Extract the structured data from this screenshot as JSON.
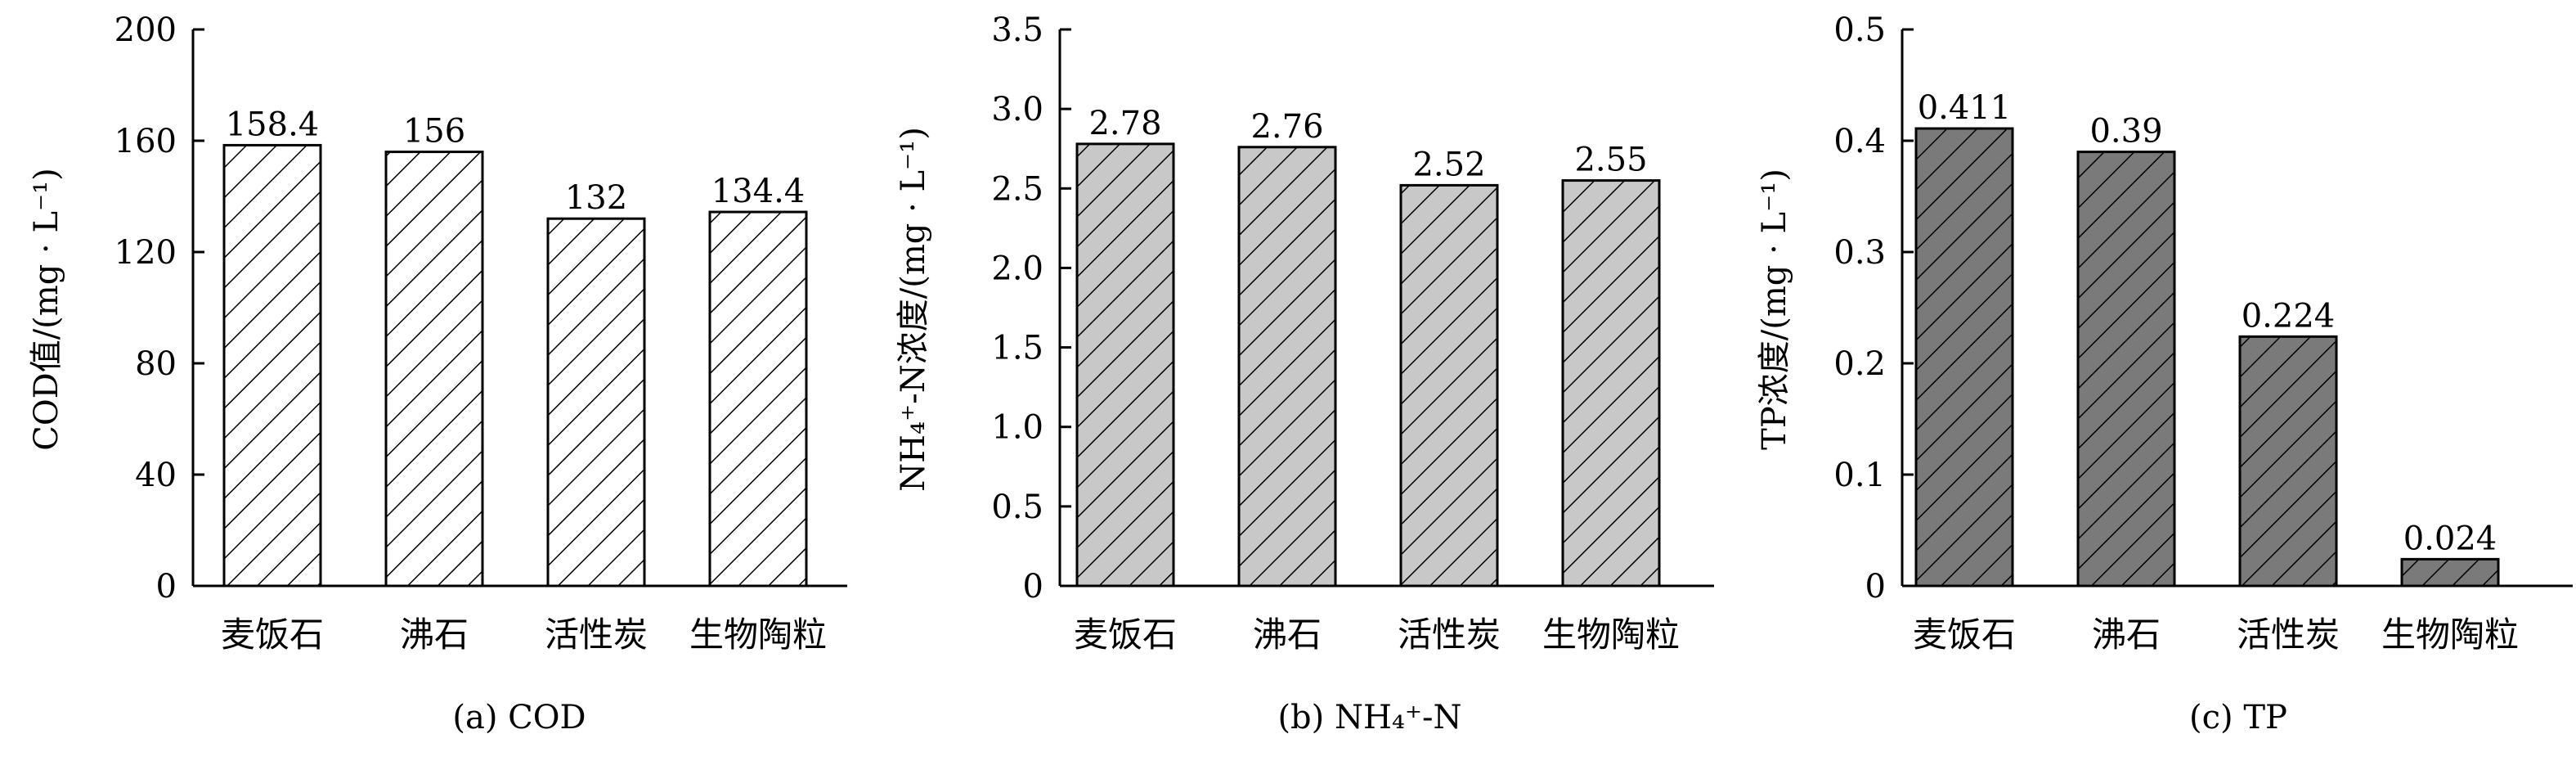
{
  "chart_data": [
    {
      "type": "bar",
      "categories": [
        "麦饭石",
        "沸石",
        "活性炭",
        "生物陶粒"
      ],
      "values": [
        158.4,
        156,
        132,
        134.4
      ],
      "value_labels": [
        "158.4",
        "156",
        "132",
        "134.4"
      ],
      "ylabel": "COD值/(mg · L⁻¹)",
      "ylim": [
        0,
        200
      ],
      "yticks": [
        "0",
        "40",
        "80",
        "120",
        "160",
        "200"
      ],
      "caption": "(a) COD",
      "fill": "#ffffff",
      "hatch": "#000000"
    },
    {
      "type": "bar",
      "categories": [
        "麦饭石",
        "沸石",
        "活性炭",
        "生物陶粒"
      ],
      "values": [
        2.78,
        2.76,
        2.52,
        2.55
      ],
      "value_labels": [
        "2.78",
        "2.76",
        "2.52",
        "2.55"
      ],
      "ylabel": "NH₄⁺-N浓度/(mg · L⁻¹)",
      "ylim": [
        0,
        3.5
      ],
      "yticks": [
        "0",
        "0.5",
        "1.0",
        "1.5",
        "2.0",
        "2.5",
        "3.0",
        "3.5"
      ],
      "caption": "(b) NH₄⁺-N",
      "fill": "#c8c8c8",
      "hatch": "#000000"
    },
    {
      "type": "bar",
      "categories": [
        "麦饭石",
        "沸石",
        "活性炭",
        "生物陶粒"
      ],
      "values": [
        0.411,
        0.39,
        0.224,
        0.024
      ],
      "value_labels": [
        "0.411",
        "0.39",
        "0.224",
        "0.024"
      ],
      "ylabel": "TP浓度/(mg · L⁻¹)",
      "ylim": [
        0,
        0.5
      ],
      "yticks": [
        "0",
        "0.1",
        "0.2",
        "0.3",
        "0.4",
        "0.5"
      ],
      "caption": "(c) TP",
      "fill": "#7a7a7a",
      "hatch": "#000000"
    }
  ]
}
